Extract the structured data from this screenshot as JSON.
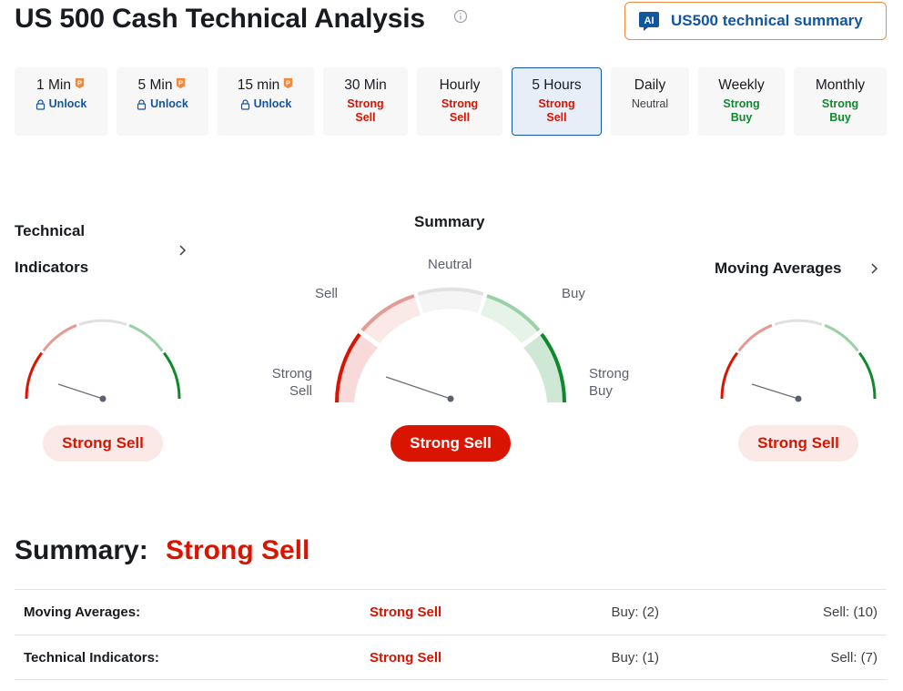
{
  "header": {
    "title": "US 500 Cash Technical Analysis",
    "ai_button_label": "US500 technical summary",
    "ai_badge": "AI"
  },
  "timeframes": [
    {
      "label": "1 Min",
      "sub": "Unlock",
      "kind": "unlock"
    },
    {
      "label": "5 Min",
      "sub": "Unlock",
      "kind": "unlock"
    },
    {
      "label": "15 min",
      "sub": "Unlock",
      "kind": "unlock"
    },
    {
      "label": "30 Min",
      "sub1": "Strong",
      "sub2": "Sell",
      "kind": "sell"
    },
    {
      "label": "Hourly",
      "sub1": "Strong",
      "sub2": "Sell",
      "kind": "sell"
    },
    {
      "label": "5 Hours",
      "sub1": "Strong",
      "sub2": "Sell",
      "kind": "sell",
      "active": true
    },
    {
      "label": "Daily",
      "sub1": "Neutral",
      "kind": "neutral"
    },
    {
      "label": "Weekly",
      "sub1": "Strong",
      "sub2": "Buy",
      "kind": "buy"
    },
    {
      "label": "Monthly",
      "sub1": "Strong",
      "sub2": "Buy",
      "kind": "buy"
    }
  ],
  "gauges": {
    "technical": {
      "title_line1": "Technical",
      "title_line2": "Indicators",
      "result": "Strong Sell"
    },
    "summary": {
      "title": "Summary",
      "result": "Strong Sell",
      "labels": {
        "neutral": "Neutral",
        "sell": "Sell",
        "buy": "Buy",
        "strong_sell_1": "Strong",
        "strong_sell_2": "Sell",
        "strong_buy_1": "Strong",
        "strong_buy_2": "Buy"
      }
    },
    "moving": {
      "title": "Moving Averages",
      "result": "Strong Sell"
    }
  },
  "summary": {
    "label": "Summary:",
    "value": "Strong Sell",
    "rows": [
      {
        "name": "Moving Averages:",
        "signal": "Strong Sell",
        "buy": "Buy: (2)",
        "sell": "Sell: (10)"
      },
      {
        "name": "Technical Indicators:",
        "signal": "Strong Sell",
        "buy": "Buy: (1)",
        "sell": "Sell: (7)"
      }
    ]
  },
  "colors": {
    "sell": "#d91400",
    "buy": "#0e8a2c",
    "link": "#1256a0",
    "pro": "#f0883e"
  },
  "icons": [
    "info-icon",
    "ai-badge-icon",
    "pro-icon",
    "lock-icon",
    "chevron-right-icon"
  ]
}
